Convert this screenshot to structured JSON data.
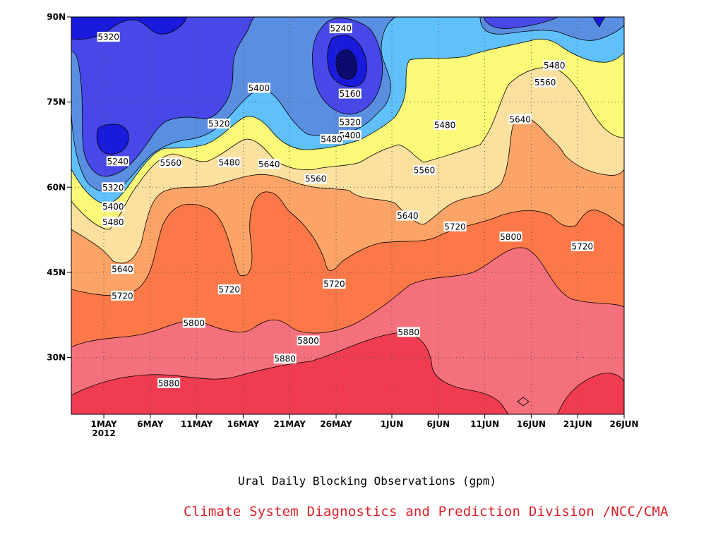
{
  "chart_data": {
    "type": "heatmap",
    "subtype": "filled-contour",
    "title": "Ural Daily Blocking Observations (gpm)",
    "credit": "Climate System Diagnostics and Prediction Division /NCC/CMA",
    "x_ticks": [
      {
        "label": "1MAY",
        "sub": "2012",
        "day": 0
      },
      {
        "label": "6MAY",
        "day": 5
      },
      {
        "label": "11MAY",
        "day": 10
      },
      {
        "label": "16MAY",
        "day": 15
      },
      {
        "label": "21MAY",
        "day": 20
      },
      {
        "label": "26MAY",
        "day": 25
      },
      {
        "label": "1JUN",
        "day": 31
      },
      {
        "label": "6JUN",
        "day": 36
      },
      {
        "label": "11JUN",
        "day": 41
      },
      {
        "label": "16JUN",
        "day": 46
      },
      {
        "label": "21JUN",
        "day": 51
      },
      {
        "label": "26JUN",
        "day": 56
      }
    ],
    "xlim_days": [
      -3.5,
      56
    ],
    "y_ticks": [
      {
        "label": "30N",
        "lat": 30
      },
      {
        "label": "45N",
        "lat": 45
      },
      {
        "label": "60N",
        "lat": 60
      },
      {
        "label": "75N",
        "lat": 75
      },
      {
        "label": "90N",
        "lat": 90
      }
    ],
    "ylim_lat": [
      20,
      90
    ],
    "grid": true,
    "contour_levels": [
      5160,
      5240,
      5320,
      5400,
      5480,
      5560,
      5640,
      5720,
      5800,
      5880
    ],
    "fill_colors": [
      "#0c0c6e",
      "#1a1adc",
      "#4848e8",
      "#5a8ee0",
      "#60c0fc",
      "#fafa78",
      "#fce0a0",
      "#fca468",
      "#fc7848",
      "#f4707c",
      "#f03c50"
    ],
    "contour_labels": [
      {
        "text": "5320",
        "day": 0.5,
        "lat": 86.5
      },
      {
        "text": "5240",
        "day": 25.5,
        "lat": 88
      },
      {
        "text": "5480",
        "day": 48.5,
        "lat": 81.5
      },
      {
        "text": "5560",
        "day": 47.5,
        "lat": 78.5
      },
      {
        "text": "5400",
        "day": 16.7,
        "lat": 77.5
      },
      {
        "text": "5160",
        "day": 26.5,
        "lat": 76.5
      },
      {
        "text": "5320",
        "day": 12.4,
        "lat": 71.2
      },
      {
        "text": "5320",
        "day": 26.5,
        "lat": 71.5
      },
      {
        "text": "5400",
        "day": 26.5,
        "lat": 69.2
      },
      {
        "text": "5480",
        "day": 24.5,
        "lat": 68.5
      },
      {
        "text": "5480",
        "day": 36.7,
        "lat": 71.0
      },
      {
        "text": "5640",
        "day": 44.8,
        "lat": 72.0
      },
      {
        "text": "5240",
        "day": 1.5,
        "lat": 64.6
      },
      {
        "text": "5560",
        "day": 7.2,
        "lat": 64.3
      },
      {
        "text": "5480",
        "day": 13.5,
        "lat": 64.4
      },
      {
        "text": "5640",
        "day": 17.8,
        "lat": 64.1
      },
      {
        "text": "5560",
        "day": 22.8,
        "lat": 61.5
      },
      {
        "text": "5560",
        "day": 34.5,
        "lat": 63.0
      },
      {
        "text": "5320",
        "day": 1.0,
        "lat": 60.0
      },
      {
        "text": "5400",
        "day": 1.0,
        "lat": 56.6
      },
      {
        "text": "5480",
        "day": 1.0,
        "lat": 53.9
      },
      {
        "text": "5640",
        "day": 32.7,
        "lat": 55.0
      },
      {
        "text": "5720",
        "day": 37.8,
        "lat": 53.1
      },
      {
        "text": "5800",
        "day": 43.8,
        "lat": 51.3
      },
      {
        "text": "5720",
        "day": 51.5,
        "lat": 49.6
      },
      {
        "text": "5640",
        "day": 2.0,
        "lat": 45.6
      },
      {
        "text": "5720",
        "day": 13.5,
        "lat": 42.0
      },
      {
        "text": "5720",
        "day": 24.8,
        "lat": 43.0
      },
      {
        "text": "5720",
        "day": 2.0,
        "lat": 40.9
      },
      {
        "text": "5800",
        "day": 9.7,
        "lat": 36.1
      },
      {
        "text": "5800",
        "day": 22.0,
        "lat": 33.0
      },
      {
        "text": "5880",
        "day": 32.8,
        "lat": 34.5
      },
      {
        "text": "5880",
        "day": 19.5,
        "lat": 29.8
      },
      {
        "text": "5880",
        "day": 7.0,
        "lat": 25.5
      }
    ]
  }
}
